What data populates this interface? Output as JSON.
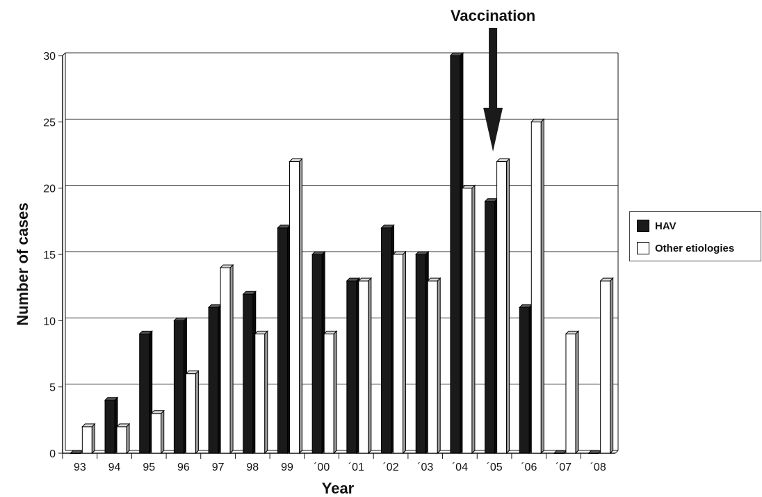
{
  "chart_data": {
    "type": "bar",
    "title": "",
    "annotation": "Vaccination",
    "annotation_category": "´05",
    "xlabel": "Year",
    "ylabel": "Number of cases",
    "ylim": [
      0,
      30
    ],
    "yticks": [
      0,
      5,
      10,
      15,
      20,
      25,
      30
    ],
    "grid": true,
    "legend_position": "right",
    "categories": [
      "93",
      "94",
      "95",
      "96",
      "97",
      "98",
      "99",
      "´00",
      "´01",
      "´02",
      "´03",
      "´04",
      "´05",
      "´06",
      "´07",
      "´08"
    ],
    "series": [
      {
        "name": "HAV",
        "color": "#1a1a1a",
        "values": [
          0,
          4,
          9,
          10,
          11,
          12,
          17,
          15,
          13,
          17,
          15,
          30,
          19,
          11,
          0,
          0
        ]
      },
      {
        "name": "Other etiologies",
        "color": "#ffffff",
        "values": [
          2,
          2,
          3,
          6,
          14,
          9,
          22,
          9,
          13,
          15,
          13,
          20,
          22,
          25,
          9,
          13
        ]
      }
    ]
  }
}
